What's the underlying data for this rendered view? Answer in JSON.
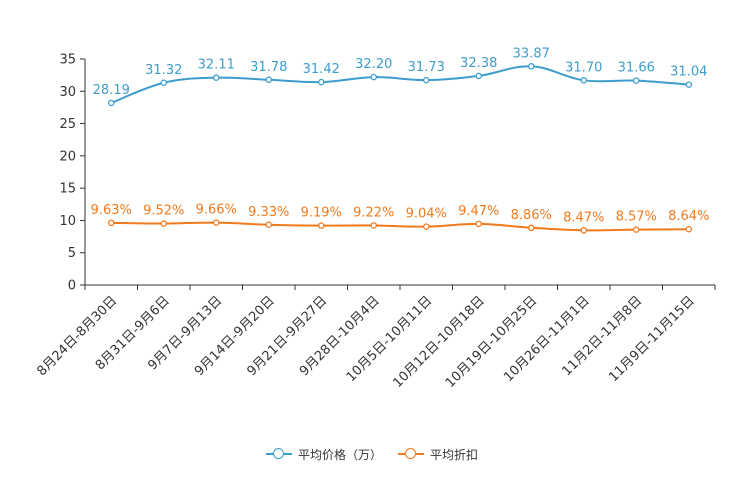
{
  "chart_data": {
    "type": "line",
    "categories": [
      "8月24日-8月30日",
      "8月31日-9月6日",
      "9月7日-9月13日",
      "9月14日-9月20日",
      "9月21日-9月27日",
      "9月28日-10月4日",
      "10月5日-10月11日",
      "10月12日-10月18日",
      "10月19日-10月25日",
      "10月26日-11月1日",
      "11月2日-11月8日",
      "11月9日-11月15日"
    ],
    "series": [
      {
        "name": "平均价格（万）",
        "color": "#3d9dcc",
        "values": [
          28.19,
          31.32,
          32.11,
          31.78,
          31.42,
          32.2,
          31.73,
          32.38,
          33.87,
          31.7,
          31.66,
          31.04
        ],
        "labels": [
          "28.19",
          "31.32",
          "32.11",
          "31.78",
          "31.42",
          "32.20",
          "31.73",
          "32.38",
          "33.87",
          "31.70",
          "31.66",
          "31.04"
        ]
      },
      {
        "name": "平均折扣",
        "color": "#f07a1d",
        "values": [
          9.63,
          9.52,
          9.66,
          9.33,
          9.19,
          9.22,
          9.04,
          9.47,
          8.86,
          8.47,
          8.57,
          8.64
        ],
        "labels": [
          "9.63%",
          "9.52%",
          "9.66%",
          "9.33%",
          "9.19%",
          "9.22%",
          "9.04%",
          "9.47%",
          "8.86%",
          "8.47%",
          "8.57%",
          "8.64%"
        ]
      }
    ],
    "ylim": [
      0,
      35
    ],
    "yticks": [
      0,
      5,
      10,
      15,
      20,
      25,
      30,
      35
    ],
    "title": "",
    "xlabel": "",
    "ylabel": "",
    "legend_position": "bottom-center"
  }
}
